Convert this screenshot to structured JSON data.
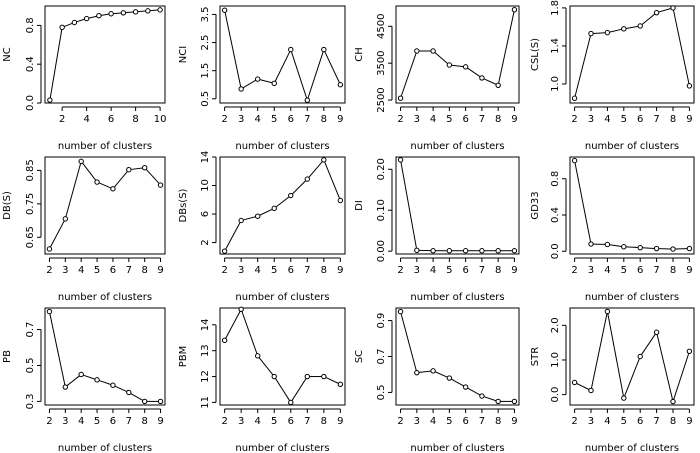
{
  "chart_data": [
    {
      "type": "line",
      "ylabel": "NC",
      "xlabel": "number of clusters",
      "x": [
        1,
        2,
        3,
        4,
        5,
        6,
        7,
        8,
        9,
        10
      ],
      "values": [
        0.03,
        0.78,
        0.83,
        0.87,
        0.9,
        0.92,
        0.93,
        0.94,
        0.95,
        0.96
      ],
      "xlim": [
        0.6,
        10.4
      ],
      "ylim": [
        0,
        1
      ],
      "xticks": [
        2,
        4,
        6,
        8,
        10
      ],
      "yticks": [
        0.0,
        0.4,
        0.8
      ],
      "ytick_labels": [
        "0.0",
        "0.4",
        "0.8"
      ]
    },
    {
      "type": "line",
      "ylabel": "NCI",
      "xlabel": "number of clusters",
      "x": [
        2,
        3,
        4,
        5,
        6,
        7,
        8,
        9
      ],
      "values": [
        3.65,
        0.85,
        1.2,
        1.05,
        2.25,
        0.45,
        2.25,
        1.0
      ],
      "xlim": [
        1.72,
        9.28
      ],
      "ylim": [
        0.35,
        3.8
      ],
      "xticks": [
        2,
        3,
        4,
        5,
        6,
        7,
        8,
        9
      ],
      "yticks": [
        0.5,
        1.5,
        2.5,
        3.5
      ],
      "ytick_labels": [
        "0.5",
        "1.5",
        "2.5",
        "3.5"
      ]
    },
    {
      "type": "line",
      "ylabel": "CH",
      "xlabel": "number of clusters",
      "x": [
        2,
        3,
        4,
        5,
        6,
        7,
        8,
        9
      ],
      "values": [
        2550,
        3830,
        3830,
        3450,
        3400,
        3100,
        2900,
        4950
      ],
      "xlim": [
        1.72,
        9.28
      ],
      "ylim": [
        2420,
        5050
      ],
      "xticks": [
        2,
        3,
        4,
        5,
        6,
        7,
        8,
        9
      ],
      "yticks": [
        2500,
        3500,
        4500
      ],
      "ytick_labels": [
        "2500",
        "3500",
        "4500"
      ]
    },
    {
      "type": "line",
      "ylabel": "CSL(S)",
      "xlabel": "number of clusters",
      "x": [
        2,
        3,
        4,
        5,
        6,
        7,
        8,
        9
      ],
      "values": [
        0.85,
        1.53,
        1.54,
        1.58,
        1.61,
        1.75,
        1.8,
        0.98
      ],
      "xlim": [
        1.72,
        9.28
      ],
      "ylim": [
        0.8,
        1.82
      ],
      "xticks": [
        2,
        3,
        4,
        5,
        6,
        7,
        8,
        9
      ],
      "yticks": [
        1.0,
        1.4,
        1.8
      ],
      "ytick_labels": [
        "1.0",
        "1.4",
        "1.8"
      ]
    },
    {
      "type": "line",
      "ylabel": "DB(S)",
      "xlabel": "number of clusters",
      "x": [
        2,
        3,
        4,
        5,
        6,
        7,
        8,
        9
      ],
      "values": [
        0.615,
        0.705,
        0.877,
        0.815,
        0.795,
        0.852,
        0.858,
        0.806
      ],
      "xlim": [
        1.72,
        9.28
      ],
      "ylim": [
        0.6,
        0.89
      ],
      "xticks": [
        2,
        3,
        4,
        5,
        6,
        7,
        8,
        9
      ],
      "yticks": [
        0.65,
        0.75,
        0.85
      ],
      "ytick_labels": [
        "0.65",
        "0.75",
        "0.85"
      ]
    },
    {
      "type": "line",
      "ylabel": "DBs(S)",
      "xlabel": "number of clusters",
      "x": [
        2,
        3,
        4,
        5,
        6,
        7,
        8,
        9
      ],
      "values": [
        0.8,
        5.1,
        5.7,
        6.8,
        8.6,
        10.9,
        13.6,
        7.9
      ],
      "xlim": [
        1.72,
        9.28
      ],
      "ylim": [
        0.4,
        14.0
      ],
      "xticks": [
        2,
        3,
        4,
        5,
        6,
        7,
        8,
        9
      ],
      "yticks": [
        2,
        6,
        10,
        14
      ],
      "ytick_labels": [
        "2",
        "6",
        "10",
        "14"
      ]
    },
    {
      "type": "line",
      "ylabel": "DI",
      "xlabel": "number of clusters",
      "x": [
        2,
        3,
        4,
        5,
        6,
        7,
        8,
        9
      ],
      "values": [
        0.223,
        0.002,
        0.001,
        0.001,
        0.001,
        0.001,
        0.001,
        0.001
      ],
      "xlim": [
        1.72,
        9.28
      ],
      "ylim": [
        -0.007,
        0.23
      ],
      "xticks": [
        2,
        3,
        4,
        5,
        6,
        7,
        8,
        9
      ],
      "yticks": [
        0.0,
        0.1,
        0.2
      ],
      "ytick_labels": [
        "0.00",
        "0.10",
        "0.20"
      ]
    },
    {
      "type": "line",
      "ylabel": "GD33",
      "xlabel": "number of clusters",
      "x": [
        2,
        3,
        4,
        5,
        6,
        7,
        8,
        9
      ],
      "values": [
        1.0,
        0.08,
        0.075,
        0.05,
        0.04,
        0.03,
        0.025,
        0.03
      ],
      "xlim": [
        1.72,
        9.28
      ],
      "ylim": [
        -0.03,
        1.04
      ],
      "xticks": [
        2,
        3,
        4,
        5,
        6,
        7,
        8,
        9
      ],
      "yticks": [
        0.0,
        0.4,
        0.8
      ],
      "ytick_labels": [
        "0.0",
        "0.4",
        "0.8"
      ]
    },
    {
      "type": "line",
      "ylabel": "PB",
      "xlabel": "number of clusters",
      "x": [
        2,
        3,
        4,
        5,
        6,
        7,
        8,
        9
      ],
      "values": [
        0.8,
        0.38,
        0.45,
        0.42,
        0.39,
        0.35,
        0.3,
        0.3
      ],
      "xlim": [
        1.72,
        9.28
      ],
      "ylim": [
        0.28,
        0.82
      ],
      "xticks": [
        2,
        3,
        4,
        5,
        6,
        7,
        8,
        9
      ],
      "yticks": [
        0.3,
        0.5,
        0.7
      ],
      "ytick_labels": [
        "0.3",
        "0.5",
        "0.7"
      ]
    },
    {
      "type": "line",
      "ylabel": "PBM",
      "xlabel": "number of clusters",
      "x": [
        2,
        3,
        4,
        5,
        6,
        7,
        8,
        9
      ],
      "values": [
        13.4,
        14.6,
        12.8,
        12.0,
        11.0,
        12.0,
        12.0,
        11.7
      ],
      "xlim": [
        1.72,
        9.28
      ],
      "ylim": [
        10.9,
        14.65
      ],
      "xticks": [
        2,
        3,
        4,
        5,
        6,
        7,
        8,
        9
      ],
      "yticks": [
        11,
        12,
        13,
        14
      ],
      "ytick_labels": [
        "11",
        "12",
        "13",
        "14"
      ]
    },
    {
      "type": "line",
      "ylabel": "SC",
      "xlabel": "number of clusters",
      "x": [
        2,
        3,
        4,
        5,
        6,
        7,
        8,
        9
      ],
      "values": [
        0.95,
        0.61,
        0.62,
        0.58,
        0.53,
        0.48,
        0.45,
        0.45
      ],
      "xlim": [
        1.72,
        9.28
      ],
      "ylim": [
        0.43,
        0.97
      ],
      "xticks": [
        2,
        3,
        4,
        5,
        6,
        7,
        8,
        9
      ],
      "yticks": [
        0.5,
        0.7,
        0.9
      ],
      "ytick_labels": [
        "0.5",
        "0.7",
        "0.9"
      ]
    },
    {
      "type": "line",
      "ylabel": "STR",
      "xlabel": "number of clusters",
      "x": [
        2,
        3,
        4,
        5,
        6,
        7,
        8,
        9
      ],
      "values": [
        0.35,
        0.12,
        2.4,
        -0.1,
        1.1,
        1.8,
        -0.2,
        1.25
      ],
      "xlim": [
        1.72,
        9.28
      ],
      "ylim": [
        -0.3,
        2.5
      ],
      "xticks": [
        2,
        3,
        4,
        5,
        6,
        7,
        8,
        9
      ],
      "yticks": [
        0.0,
        1.0,
        2.0
      ],
      "ytick_labels": [
        "0.0",
        "1.0",
        "2.0"
      ]
    }
  ]
}
